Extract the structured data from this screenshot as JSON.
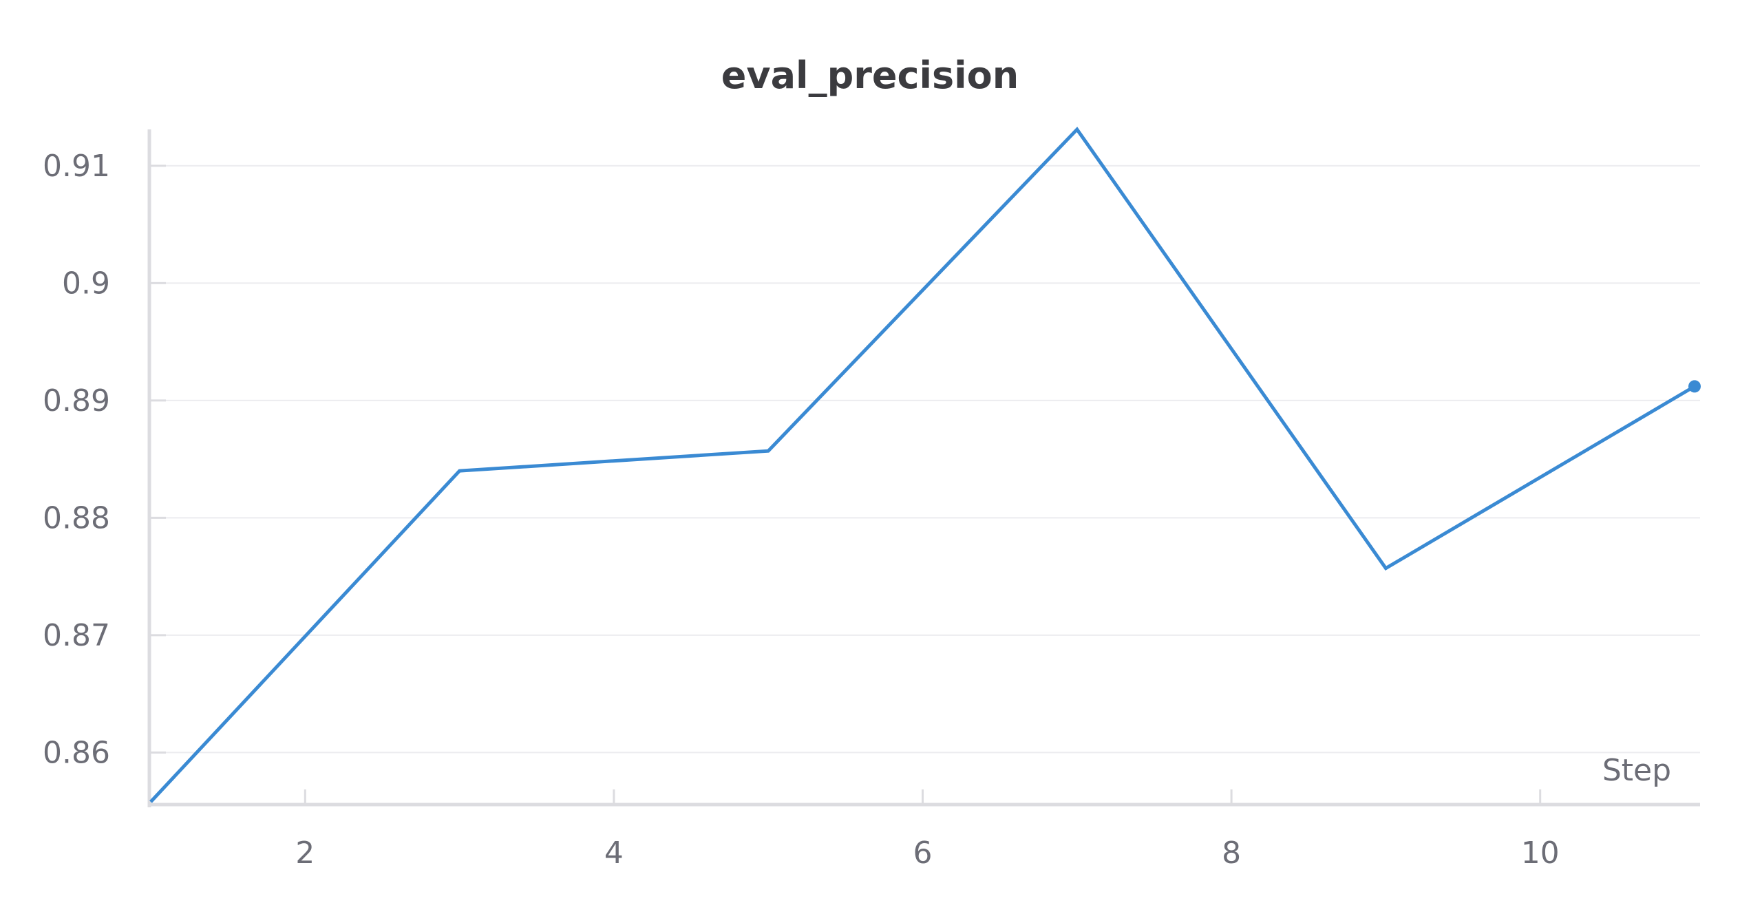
{
  "chart_data": {
    "type": "line",
    "title": "eval_precision",
    "xlabel": "Step",
    "ylabel": "",
    "x": [
      1,
      3,
      5,
      7,
      9,
      11
    ],
    "series": [
      {
        "color": "#3a8ad3",
        "values": [
          0.8558,
          0.884,
          0.8857,
          0.9131,
          0.8757,
          0.8912
        ]
      }
    ],
    "xlim": [
      1,
      11
    ],
    "ylim": [
      0.8558,
      0.9131
    ],
    "xticks": [
      2,
      4,
      6,
      8,
      10
    ],
    "xtick_labels": [
      "2",
      "4",
      "6",
      "8",
      "10"
    ],
    "yticks": [
      0.86,
      0.87,
      0.88,
      0.89,
      0.9,
      0.91
    ],
    "ytick_labels": [
      "0.86",
      "0.87",
      "0.88",
      "0.89",
      "0.9",
      "0.91"
    ],
    "grid": true,
    "legend": "none",
    "last_point_marker": true
  }
}
